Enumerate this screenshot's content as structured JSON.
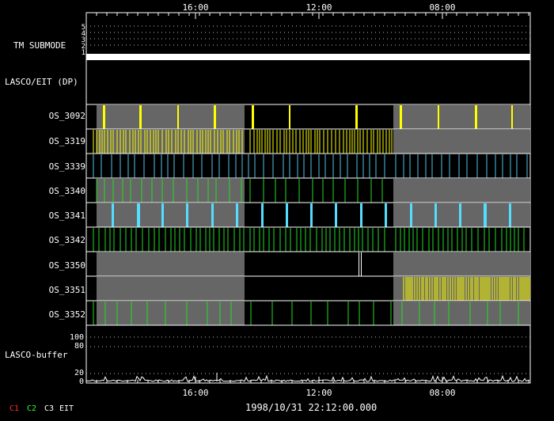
{
  "time_axis": {
    "top_ticks": [
      "16:00",
      "12:00",
      "08:00"
    ],
    "bottom_ticks": [
      "16:00",
      "12:00",
      "08:00"
    ]
  },
  "panels": {
    "tm_submode": {
      "label": "TM SUBMODE",
      "levels": [
        "5",
        "4",
        "3",
        "2",
        "1"
      ]
    },
    "lasco_eit_dp": {
      "label": "LASCO/EIT (DP)"
    },
    "lasco_buffer": {
      "label": "LASCO-buffer",
      "y_ticks": [
        "100",
        "80",
        "20",
        "0"
      ]
    }
  },
  "os_rows": [
    {
      "label": "OS_3092",
      "color": "#ffff00",
      "bg": "mixed"
    },
    {
      "label": "OS_3319",
      "color": "#ffff00",
      "bg": "mixed"
    },
    {
      "label": "OS_3339",
      "color": "#4fc3e8",
      "bg": "black"
    },
    {
      "label": "OS_3340",
      "color": "#22dd22",
      "bg": "mixed"
    },
    {
      "label": "OS_3341",
      "color": "#55ddff",
      "bg": "mixed"
    },
    {
      "label": "OS_3342",
      "color": "#22dd22",
      "bg": "black"
    },
    {
      "label": "OS_3350",
      "color": "#ffffff",
      "bg": "mixed"
    },
    {
      "label": "OS_3351",
      "color": "#ffff00",
      "bg": "mixed"
    },
    {
      "label": "OS_3352",
      "color": "#22dd22",
      "bg": "mixed"
    }
  ],
  "legend": [
    {
      "label": "C1",
      "color": "#ff3030"
    },
    {
      "label": "C2",
      "color": "#30ff30"
    },
    {
      "label": "C3",
      "color": "#ffffff"
    },
    {
      "label": "EIT",
      "color": "#ffffff"
    }
  ],
  "timestamp": "1998/10/31 22:12:00.000",
  "colors": {
    "gray_fill": "#666666",
    "frame": "#ffffff",
    "grid_dots": "#bbbbbb"
  }
}
